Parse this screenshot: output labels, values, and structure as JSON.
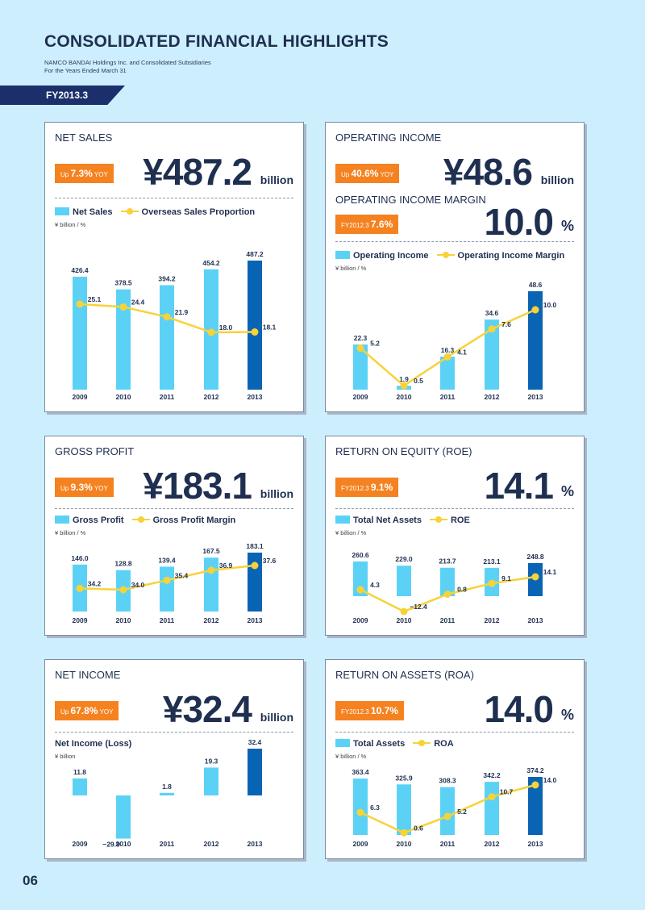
{
  "header": {
    "title": "CONSOLIDATED FINANCIAL HIGHLIGHTS",
    "subtitle1": "NAMCO BANDAI Holdings Inc. and Consolidated Subsidiaries",
    "subtitle2": "For the Years Ended March 31",
    "fy": "FY2013.3"
  },
  "page_number": "06",
  "colors": {
    "bar": "#5bd2f5",
    "highlight_bar": "#0a64b4",
    "line": "#f8d239",
    "badge": "#f58220",
    "navy": "#1b2f6b"
  },
  "net_sales": {
    "title": "NET SALES",
    "badge_prefix": "Up ",
    "badge_value": "7.3%",
    "badge_suffix": " YOY",
    "big": "¥487.2",
    "unit": "billion",
    "legend_bar": "Net Sales",
    "legend_line": "Overseas Sales Proportion",
    "axis_unit": "¥ billion / %"
  },
  "operating_income": {
    "title": "OPERATING INCOME",
    "badge_prefix": "Up ",
    "badge_value": "40.6%",
    "badge_suffix": " YOY",
    "big": "¥48.6",
    "unit": "billion",
    "subtitle": "OPERATING INCOME MARGIN",
    "badge2_prefix": "FY2012.3 ",
    "badge2_value": "7.6%",
    "big2": "10.0",
    "unit2": "%",
    "legend_bar": "Operating Income",
    "legend_line": "Operating Income Margin",
    "axis_unit": "¥ billion / %"
  },
  "gross_profit": {
    "title": "GROSS PROFIT",
    "badge_prefix": "Up ",
    "badge_value": "9.3%",
    "badge_suffix": " YOY",
    "big": "¥183.1",
    "unit": "billion",
    "legend_bar": "Gross Profit",
    "legend_line": "Gross Profit Margin",
    "axis_unit": "¥ billion / %"
  },
  "roe": {
    "title": "RETURN ON EQUITY (ROE)",
    "badge_prefix": "FY2012.3 ",
    "badge_value": "9.1%",
    "big": "14.1",
    "unit": "%",
    "legend_bar": "Total Net Assets",
    "legend_line": "ROE",
    "axis_unit": "¥ billion / %"
  },
  "net_income": {
    "title": "NET INCOME",
    "badge_prefix": "Up ",
    "badge_value": "67.8%",
    "badge_suffix": " YOY",
    "big": "¥32.4",
    "unit": "billion",
    "legend_bar": "Net Income (Loss)",
    "axis_unit": "¥ billion"
  },
  "roa": {
    "title": "RETURN ON ASSETS (ROA)",
    "badge_prefix": "FY2012.3 ",
    "badge_value": "10.7%",
    "big": "14.0",
    "unit": "%",
    "legend_bar": "Total Assets",
    "legend_line": "ROA",
    "axis_unit": "¥ billion / %"
  },
  "chart_data": [
    {
      "id": "net_sales",
      "type": "bar",
      "categories": [
        "2009",
        "2010",
        "2011",
        "2012",
        "2013"
      ],
      "series": [
        {
          "name": "Net Sales",
          "values": [
            426.4,
            378.5,
            394.2,
            454.2,
            487.2
          ],
          "labels": [
            "426.4",
            "378.5",
            "394.2",
            "454.2",
            "487.2"
          ]
        },
        {
          "name": "Overseas Sales Proportion",
          "type": "line",
          "values": [
            25.1,
            24.4,
            21.9,
            18.0,
            18.1
          ],
          "labels": [
            "25.1",
            "24.4",
            "21.9",
            "18.0",
            "18.1"
          ]
        }
      ]
    },
    {
      "id": "operating_income",
      "type": "bar",
      "categories": [
        "2009",
        "2010",
        "2011",
        "2012",
        "2013"
      ],
      "series": [
        {
          "name": "Operating Income",
          "values": [
            22.3,
            1.9,
            16.3,
            34.6,
            48.6
          ],
          "labels": [
            "22.3",
            "1.9",
            "16.3",
            "34.6",
            "48.6"
          ]
        },
        {
          "name": "Operating Income Margin",
          "type": "line",
          "values": [
            5.2,
            0.5,
            4.1,
            7.6,
            10.0
          ],
          "labels": [
            "5.2",
            "0.5",
            "4.1",
            "7.6",
            "10.0"
          ]
        }
      ]
    },
    {
      "id": "gross_profit",
      "type": "bar",
      "categories": [
        "2009",
        "2010",
        "2011",
        "2012",
        "2013"
      ],
      "series": [
        {
          "name": "Gross Profit",
          "values": [
            146.0,
            128.8,
            139.4,
            167.5,
            183.1
          ],
          "labels": [
            "146.0",
            "128.8",
            "139.4",
            "167.5",
            "183.1"
          ]
        },
        {
          "name": "Gross Profit Margin",
          "type": "line",
          "values": [
            34.2,
            34.0,
            35.4,
            36.9,
            37.6
          ],
          "labels": [
            "34.2",
            "34.0",
            "35.4",
            "36.9",
            "37.6"
          ]
        }
      ]
    },
    {
      "id": "roe",
      "type": "bar",
      "categories": [
        "2009",
        "2010",
        "2011",
        "2012",
        "2013"
      ],
      "series": [
        {
          "name": "Total Net Assets",
          "values": [
            260.6,
            229.0,
            213.7,
            213.1,
            248.8
          ],
          "labels": [
            "260.6",
            "229.0",
            "213.7",
            "213.1",
            "248.8"
          ]
        },
        {
          "name": "ROE",
          "type": "line",
          "values": [
            4.3,
            -12.4,
            0.8,
            9.1,
            14.1
          ],
          "labels": [
            "4.3",
            "−12.4",
            "0.8",
            "9.1",
            "14.1"
          ]
        }
      ]
    },
    {
      "id": "net_income",
      "type": "bar",
      "categories": [
        "2009",
        "2010",
        "2011",
        "2012",
        "2013"
      ],
      "series": [
        {
          "name": "Net Income (Loss)",
          "values": [
            11.8,
            -29.9,
            1.8,
            19.3,
            32.4
          ],
          "labels": [
            "11.8",
            "−29.9",
            "1.8",
            "19.3",
            "32.4"
          ]
        }
      ]
    },
    {
      "id": "roa",
      "type": "bar",
      "categories": [
        "2009",
        "2010",
        "2011",
        "2012",
        "2013"
      ],
      "series": [
        {
          "name": "Total Assets",
          "values": [
            363.4,
            325.9,
            308.3,
            342.2,
            374.2
          ],
          "labels": [
            "363.4",
            "325.9",
            "308.3",
            "342.2",
            "374.2"
          ]
        },
        {
          "name": "ROA",
          "type": "line",
          "values": [
            6.3,
            0.6,
            5.2,
            10.7,
            14.0
          ],
          "labels": [
            "6.3",
            "0.6",
            "5.2",
            "10.7",
            "14.0"
          ]
        }
      ]
    }
  ]
}
